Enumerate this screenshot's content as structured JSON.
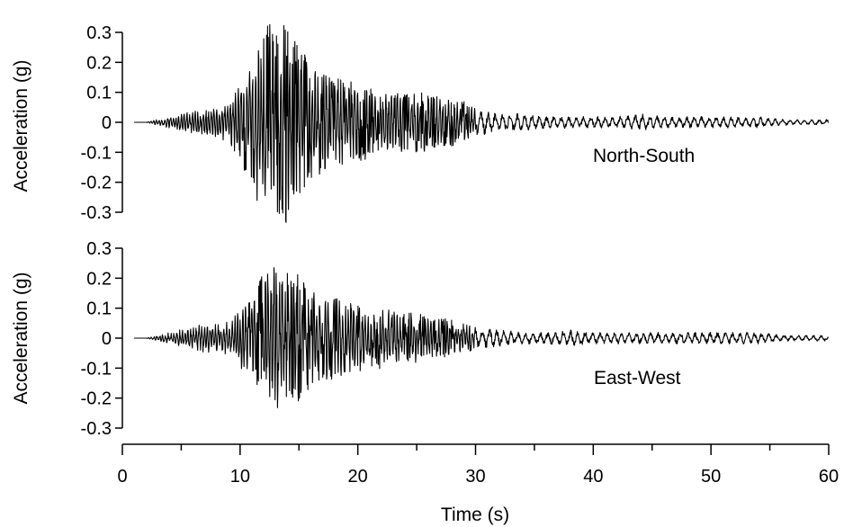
{
  "chart_data": [
    {
      "type": "line",
      "annotation": "North-South",
      "ylabel": "Acceleration (g)",
      "xlim": [
        0,
        60
      ],
      "ylim": [
        -0.3,
        0.3
      ],
      "yticks": [
        "0.3",
        "0.2",
        "0.1",
        "0",
        "-0.1",
        "-0.2",
        "-0.3"
      ],
      "grid": false,
      "series": [
        {
          "color": "#000000",
          "x": [
            1,
            2,
            3,
            4,
            5,
            6,
            7,
            8,
            9,
            10,
            11,
            11.5,
            12,
            12.5,
            13,
            13.5,
            14,
            14.5,
            15,
            16,
            17,
            18,
            19,
            20,
            21,
            22,
            23,
            24,
            25,
            26,
            27,
            28,
            29,
            30,
            32,
            34,
            36,
            38,
            40,
            42,
            44,
            46,
            48,
            50,
            52,
            54,
            56,
            58,
            60
          ],
          "envelope": [
            0,
            0,
            0.01,
            0.02,
            0.03,
            0.04,
            0.05,
            0.05,
            0.07,
            0.14,
            0.22,
            0.27,
            0.3,
            0.34,
            0.32,
            0.3,
            0.37,
            0.28,
            0.25,
            0.2,
            0.17,
            0.15,
            0.14,
            0.13,
            0.12,
            0.1,
            0.1,
            0.1,
            0.11,
            0.09,
            0.09,
            0.08,
            0.07,
            0.05,
            0.03,
            0.03,
            0.02,
            0.02,
            0.02,
            0.02,
            0.03,
            0.02,
            0.02,
            0.02,
            0.02,
            0.02,
            0.01,
            0.01,
            0.01
          ]
        }
      ]
    },
    {
      "type": "line",
      "annotation": "East-West",
      "ylabel": "Acceleration (g)",
      "xlabel": "Time (s)",
      "xlim": [
        0,
        60
      ],
      "ylim": [
        -0.3,
        0.3
      ],
      "xticks": [
        "0",
        "10",
        "20",
        "30",
        "40",
        "50",
        "60"
      ],
      "yticks": [
        "0.3",
        "0.2",
        "0.1",
        "0",
        "-0.1",
        "-0.2",
        "-0.3"
      ],
      "grid": false,
      "series": [
        {
          "color": "#000000",
          "x": [
            1,
            2,
            3,
            4,
            5,
            6,
            7,
            8,
            9,
            10,
            11,
            11.5,
            12,
            12.5,
            13,
            13.5,
            14,
            14.5,
            15,
            16,
            17,
            18,
            19,
            20,
            21,
            22,
            23,
            24,
            25,
            26,
            27,
            28,
            29,
            30,
            32,
            34,
            36,
            38,
            40,
            42,
            44,
            46,
            48,
            50,
            52,
            54,
            56,
            58,
            60
          ],
          "envelope": [
            0,
            0,
            0.01,
            0.02,
            0.03,
            0.04,
            0.05,
            0.05,
            0.06,
            0.1,
            0.14,
            0.18,
            0.22,
            0.25,
            0.24,
            0.22,
            0.22,
            0.2,
            0.22,
            0.16,
            0.15,
            0.14,
            0.12,
            0.11,
            0.11,
            0.1,
            0.09,
            0.08,
            0.09,
            0.07,
            0.07,
            0.06,
            0.05,
            0.04,
            0.03,
            0.02,
            0.02,
            0.03,
            0.02,
            0.02,
            0.02,
            0.02,
            0.02,
            0.02,
            0.02,
            0.02,
            0.01,
            0.01,
            0.01
          ]
        }
      ]
    }
  ]
}
